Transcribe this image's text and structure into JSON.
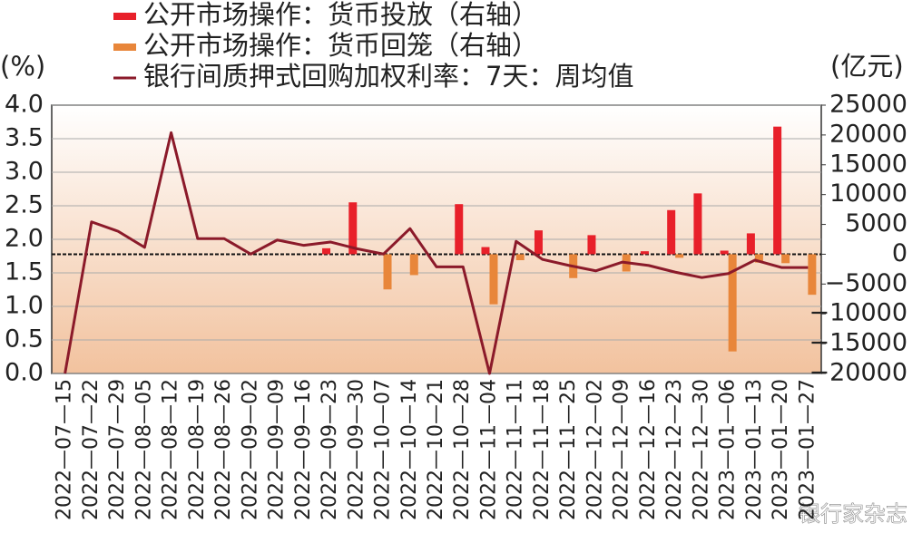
{
  "chart_data": {
    "type": "combo",
    "left_unit": "(%)",
    "right_unit": "(亿元)",
    "watermark": "银行家杂志",
    "categories": [
      "2022—07—15",
      "2022—07—22",
      "2022—07—29",
      "2022—08—05",
      "2022—08—12",
      "2022—08—19",
      "2022—08—26",
      "2022—09—02",
      "2022—09—09",
      "2022—09—16",
      "2022—09—23",
      "2022—09—30",
      "2022—10—07",
      "2022—10—14",
      "2022—10—21",
      "2022—10—28",
      "2022—11—04",
      "2022—11—11",
      "2022—11—18",
      "2022—11—25",
      "2022—12—02",
      "2022—12—09",
      "2022—12—16",
      "2022—12—23",
      "2022—12—30",
      "2023—01—06",
      "2023—01—13",
      "2023—01—20",
      "2023—01—27"
    ],
    "ylim": [
      0,
      4
    ],
    "yticks": [
      {
        "value": 0,
        "label": "0.0"
      },
      0.5,
      {
        "value": 1,
        "label": "1.0"
      },
      1.5,
      {
        "value": 2,
        "label": "2.0"
      },
      2.5,
      {
        "value": 3,
        "label": "3.0"
      },
      3.5,
      {
        "value": 4,
        "label": "4.0"
      }
    ],
    "y2lim": [
      -20000,
      25000
    ],
    "y2ticks": [
      {
        "value": -20000,
        "label": "−20000"
      },
      {
        "value": -15000,
        "label": "−15000"
      },
      {
        "value": -10000,
        "label": "−10000"
      },
      {
        "value": -5000,
        "label": "−5000"
      },
      0,
      5000,
      10000,
      15000,
      20000,
      25000
    ],
    "grid": true,
    "series": [
      {
        "name": "公开市场操作：货币投放（右轴）",
        "type": "bar",
        "axis": "y2",
        "color": "#e8202a",
        "values": [
          0,
          0,
          0,
          0,
          0,
          0,
          0,
          0,
          0,
          0,
          1000,
          8700,
          0,
          0,
          0,
          8400,
          1200,
          0,
          4000,
          0,
          3200,
          0,
          500,
          7400,
          10200,
          600,
          3500,
          21400,
          0
        ]
      },
      {
        "name": "公开市场操作：货币回笼（右轴）",
        "type": "bar",
        "axis": "y2",
        "color": "#e8863a",
        "values": [
          0,
          0,
          0,
          0,
          0,
          0,
          0,
          0,
          0,
          0,
          0,
          0,
          -5900,
          -3500,
          0,
          0,
          -8400,
          -1000,
          0,
          -4000,
          0,
          -2900,
          0,
          -600,
          0,
          -16300,
          -1400,
          -1500,
          -6800
        ]
      },
      {
        "name": "银行间质押式回购加权利率：7天：周均值",
        "type": "line",
        "axis": "y",
        "color": "#8b1a2a",
        "values": [
          0,
          2.26,
          2.12,
          1.88,
          3.59,
          2.01,
          2.01,
          1.78,
          1.99,
          1.91,
          1.96,
          1.86,
          1.78,
          2.16,
          1.59,
          1.59,
          0,
          1.97,
          1.7,
          1.61,
          1.53,
          1.66,
          1.61,
          1.51,
          1.43,
          1.49,
          1.69,
          1.58,
          1.58
        ]
      }
    ]
  }
}
